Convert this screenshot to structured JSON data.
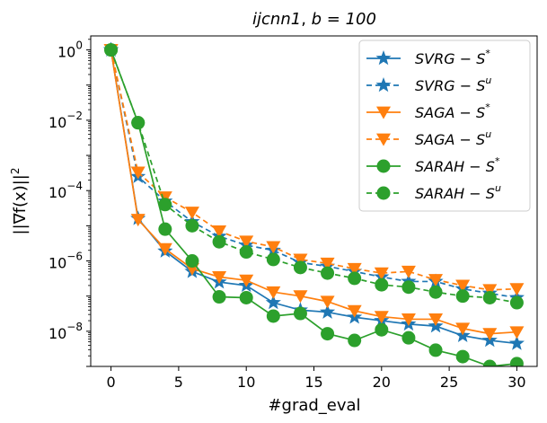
{
  "chart_data": {
    "type": "line",
    "title": "ijcnn1, b = 100",
    "title_parts": {
      "dataset": "ijcnn1",
      "batch": "b = 100"
    },
    "xlabel": "#grad_eval",
    "ylabel": "||∇f(x)||²",
    "ylabel_parts": {
      "main": "||∇f(x)||",
      "power": "2"
    },
    "xlim": [
      -1.5,
      31.5
    ],
    "ylim": [
      1e-09,
      2.5
    ],
    "yscale": "log",
    "xticks": [
      0,
      5,
      10,
      15,
      20,
      25,
      30
    ],
    "yticks": [
      {
        "base": "10",
        "exp": "0",
        "value": 1
      },
      {
        "base": "10",
        "exp": "−2",
        "value": 0.01
      },
      {
        "base": "10",
        "exp": "−4",
        "value": 0.0001
      },
      {
        "base": "10",
        "exp": "−6",
        "value": 1e-06
      },
      {
        "base": "10",
        "exp": "−8",
        "value": 1e-08
      }
    ],
    "legend_position": "top-right",
    "x": [
      0,
      2,
      4,
      6,
      8,
      10,
      12,
      14,
      16,
      18,
      20,
      22,
      24,
      26,
      28,
      30
    ],
    "series": [
      {
        "name": "SVRG − S*",
        "label_main": "SVRG − S",
        "label_sup": "*",
        "color": "#1f77b4",
        "marker": "star",
        "dashed": false,
        "values": [
          1.0,
          1.6e-05,
          1.9e-06,
          5e-07,
          2.5e-07,
          2e-07,
          6.5e-08,
          4e-08,
          3.5e-08,
          2.5e-08,
          2e-08,
          1.6e-08,
          1.4e-08,
          7.5e-09,
          5.5e-09,
          4.5e-09
        ]
      },
      {
        "name": "SVRG − Sᵘ",
        "label_main": "SVRG − S",
        "label_sup": "u",
        "color": "#1f77b4",
        "marker": "star",
        "dashed": true,
        "values": [
          1.0,
          0.00025,
          5e-05,
          1.3e-05,
          5e-06,
          2.8e-06,
          2e-06,
          9e-07,
          7e-07,
          5e-07,
          3.5e-07,
          2.6e-07,
          2.6e-07,
          1.6e-07,
          1.2e-07,
          9e-08
        ]
      },
      {
        "name": "SAGA − S*",
        "label_main": "SAGA − S",
        "label_sup": "*",
        "color": "#ff7f0e",
        "marker": "triangle-down",
        "dashed": false,
        "values": [
          1.0,
          1.5e-05,
          2.2e-06,
          6e-07,
          3.5e-07,
          2.8e-07,
          1.3e-07,
          1e-07,
          7e-08,
          3.8e-08,
          2.6e-08,
          2.2e-08,
          2.2e-08,
          1.2e-08,
          8.5e-09,
          9.5e-09
        ]
      },
      {
        "name": "SAGA − Sᵘ",
        "label_main": "SAGA − S",
        "label_sup": "u",
        "color": "#ff7f0e",
        "marker": "triangle-down",
        "dashed": true,
        "values": [
          1.0,
          0.00033,
          6.5e-05,
          2.4e-05,
          7e-06,
          3.6e-06,
          2.5e-06,
          1.1e-06,
          8.5e-07,
          6e-07,
          4.5e-07,
          5e-07,
          2.9e-07,
          2e-07,
          1.5e-07,
          1.6e-07
        ]
      },
      {
        "name": "SARAH − S*",
        "label_main": "SARAH − S",
        "label_sup": "*",
        "color": "#2ca02c",
        "marker": "circle",
        "dashed": false,
        "values": [
          1.0,
          0.0085,
          8e-06,
          1e-06,
          9.5e-08,
          9e-08,
          2.7e-08,
          3.2e-08,
          8.5e-09,
          5.5e-09,
          1.1e-08,
          6.5e-09,
          2.9e-09,
          1.9e-09,
          1e-09,
          1.2e-09
        ]
      },
      {
        "name": "SARAH − Sᵘ",
        "label_main": "SARAH − S",
        "label_sup": "u",
        "color": "#2ca02c",
        "marker": "circle",
        "dashed": true,
        "values": [
          1.0,
          0.0085,
          4e-05,
          1e-05,
          3.5e-06,
          1.8e-06,
          1.1e-06,
          6.5e-07,
          4.5e-07,
          3.2e-07,
          2.1e-07,
          1.8e-07,
          1.3e-07,
          1e-07,
          9e-08,
          6.5e-08
        ]
      }
    ]
  }
}
